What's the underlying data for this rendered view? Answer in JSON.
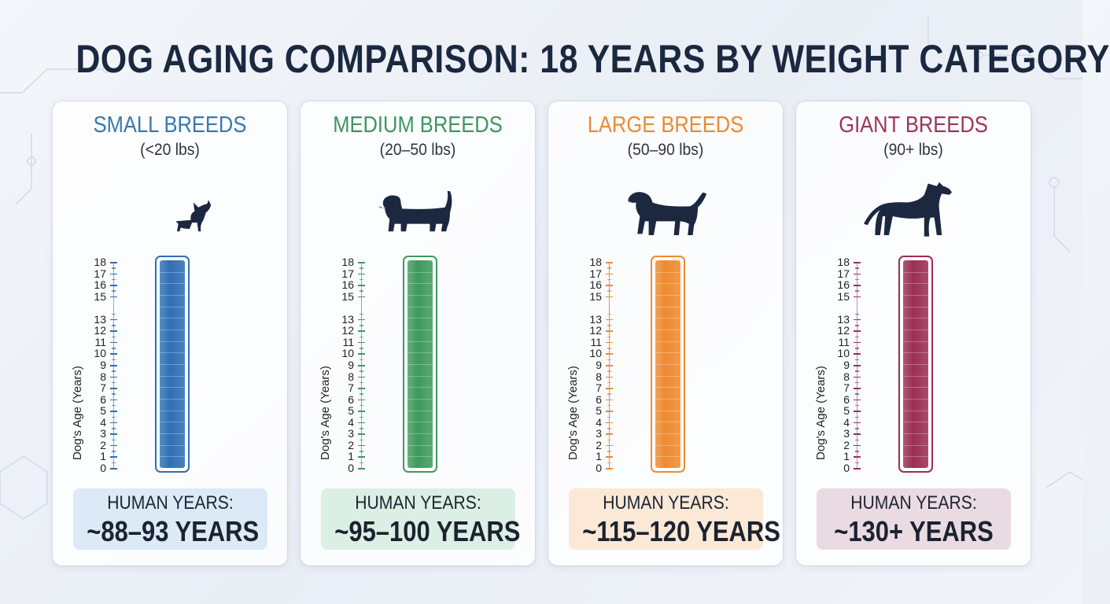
{
  "title": "DOG AGING COMPARISON: 18 YEARS BY WEIGHT CATEGORY",
  "chart_data": {
    "type": "bar",
    "title": "DOG AGING COMPARISON: 18 YEARS BY WEIGHT CATEGORY",
    "ylabel": "Dog's Age (Years)",
    "ylim": [
      0,
      18
    ],
    "yticks": [
      0,
      1,
      2,
      3,
      4,
      5,
      6,
      7,
      8,
      9,
      10,
      11,
      12,
      13,
      15,
      16,
      17,
      18
    ],
    "categories": [
      "SMALL BREEDS",
      "MEDIUM BREEDS",
      "LARGE BREEDS",
      "GIANT BREEDS"
    ],
    "values": [
      18,
      18,
      18,
      18
    ],
    "panels": [
      {
        "name": "SMALL BREEDS",
        "weight": "(<20 lbs)",
        "dog_icon": "chihuahua-icon",
        "value": 18,
        "human_label": "HUMAN YEARS:",
        "human_value": "~88–93 YEARS",
        "color": "#2e6fb4",
        "title_color": "#3a78ad",
        "box_color": "#dce9f7"
      },
      {
        "name": "MEDIUM BREEDS",
        "weight": "(20–50 lbs)",
        "dog_icon": "beagle-icon",
        "value": 18,
        "human_label": "HUMAN YEARS:",
        "human_value": "~95–100 YEARS",
        "color": "#3f9a5c",
        "title_color": "#3f9460",
        "box_color": "#dcefe4"
      },
      {
        "name": "LARGE BREEDS",
        "weight": "(50–90 lbs)",
        "dog_icon": "labrador-icon",
        "value": 18,
        "human_label": "HUMAN YEARS:",
        "human_value": "~115–120 YEARS",
        "color": "#ee8a30",
        "title_color": "#ea8a35",
        "box_color": "#fbe8d6"
      },
      {
        "name": "GIANT BREEDS",
        "weight": "(90+ lbs)",
        "dog_icon": "great-dane-icon",
        "value": 18,
        "human_label": "HUMAN YEARS:",
        "human_value": "~130+ YEARS",
        "color": "#9c2e54",
        "title_color": "#9c3556",
        "box_color": "#eadbe3"
      }
    ]
  }
}
